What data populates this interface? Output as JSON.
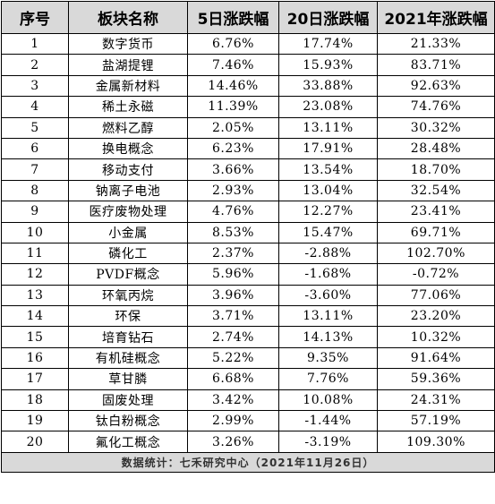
{
  "table": {
    "headers": [
      "序号",
      "板块名称",
      "5日涨跌幅",
      "20日涨跌幅",
      "2021年涨跌幅"
    ],
    "rows": [
      [
        "1",
        "数字货币",
        "6.76%",
        "17.74%",
        "21.33%"
      ],
      [
        "2",
        "盐湖提锂",
        "7.46%",
        "15.93%",
        "83.71%"
      ],
      [
        "3",
        "金属新材料",
        "14.46%",
        "33.88%",
        "92.63%"
      ],
      [
        "4",
        "稀土永磁",
        "11.39%",
        "23.08%",
        "74.76%"
      ],
      [
        "5",
        "燃料乙醇",
        "2.05%",
        "13.11%",
        "30.32%"
      ],
      [
        "6",
        "换电概念",
        "6.23%",
        "17.91%",
        "28.48%"
      ],
      [
        "7",
        "移动支付",
        "3.66%",
        "13.54%",
        "18.70%"
      ],
      [
        "8",
        "钠离子电池",
        "2.93%",
        "13.04%",
        "32.54%"
      ],
      [
        "9",
        "医疗废物处理",
        "4.76%",
        "12.27%",
        "23.41%"
      ],
      [
        "10",
        "小金属",
        "8.53%",
        "15.47%",
        "69.71%"
      ],
      [
        "11",
        "磷化工",
        "2.37%",
        "-2.88%",
        "102.70%"
      ],
      [
        "12",
        "PVDF概念",
        "5.96%",
        "-1.68%",
        "-0.72%"
      ],
      [
        "13",
        "环氧丙烷",
        "3.96%",
        "-3.60%",
        "77.06%"
      ],
      [
        "14",
        "环保",
        "3.71%",
        "13.11%",
        "23.20%"
      ],
      [
        "15",
        "培育钻石",
        "2.74%",
        "14.13%",
        "10.32%"
      ],
      [
        "16",
        "有机硅概念",
        "5.22%",
        "9.35%",
        "91.64%"
      ],
      [
        "17",
        "草甘膦",
        "6.68%",
        "7.76%",
        "59.36%"
      ],
      [
        "18",
        "固废处理",
        "3.42%",
        "10.08%",
        "24.31%"
      ],
      [
        "19",
        "钛白粉概念",
        "2.99%",
        "-1.44%",
        "57.19%"
      ],
      [
        "20",
        "氟化工概念",
        "3.26%",
        "-3.19%",
        "109.30%"
      ]
    ],
    "footer": "数据统计：七禾研究中心（2021年11月26日）"
  },
  "colors": {
    "header_bg": "#d9d9d9",
    "footer_bg": "#d9d9d9",
    "border": "#000000",
    "text": "#000000"
  }
}
